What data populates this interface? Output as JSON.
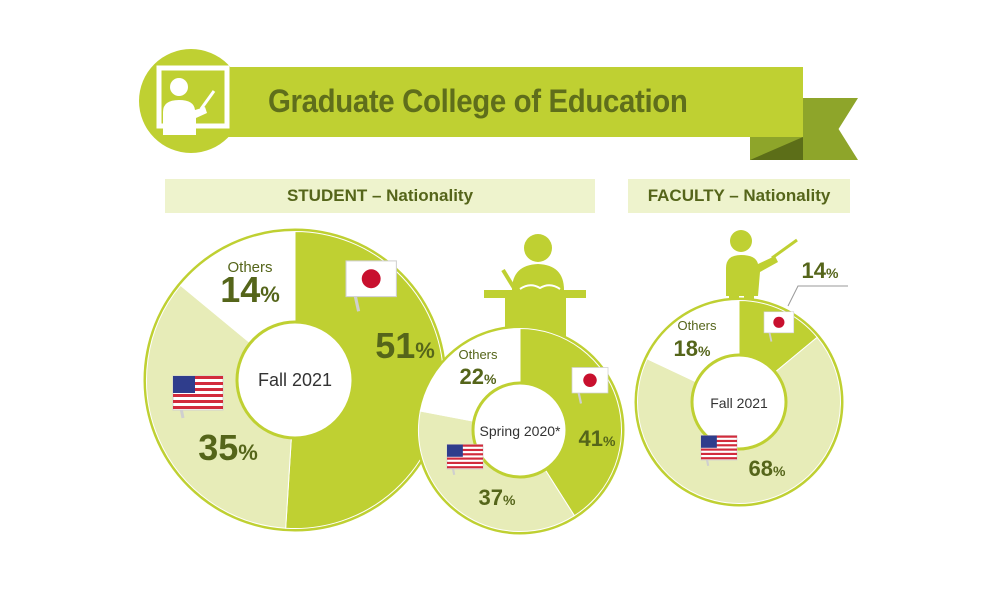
{
  "title": "Graduate College of Education",
  "colors": {
    "japan": "#bfd032",
    "usa": "#e7ecb8",
    "others": "#ffffff",
    "border": "#bfd032",
    "text": "#55651a",
    "header_bg": "#eef3cd"
  },
  "icons": [
    "teacher-board-icon",
    "student-desk-icon",
    "teacher-pointer-icon",
    "japan-flag-icon",
    "usa-flag-icon"
  ],
  "sections": {
    "student": "STUDENT – Nationality",
    "faculty": "FACULTY – Nationality"
  },
  "chart_data": [
    {
      "type": "pie",
      "center_label": "Fall 2021",
      "categories": [
        "Japan",
        "USA",
        "Others"
      ],
      "values": [
        51,
        35,
        14
      ],
      "value_labels": [
        "51",
        "35",
        "14"
      ],
      "category_labels": [
        "",
        "",
        "Others"
      ],
      "unit": "%"
    },
    {
      "type": "pie",
      "center_label": "Spring 2020*",
      "categories": [
        "Japan",
        "USA",
        "Others"
      ],
      "values": [
        41,
        37,
        22
      ],
      "value_labels": [
        "41",
        "37",
        "22"
      ],
      "category_labels": [
        "",
        "",
        "Others"
      ],
      "unit": "%"
    },
    {
      "type": "pie",
      "center_label": "Fall 2021",
      "categories": [
        "Japan",
        "USA",
        "Others"
      ],
      "values": [
        14,
        68,
        18
      ],
      "value_labels": [
        "14",
        "68",
        "18"
      ],
      "category_labels": [
        "",
        "",
        "Others"
      ],
      "unit": "%"
    }
  ]
}
